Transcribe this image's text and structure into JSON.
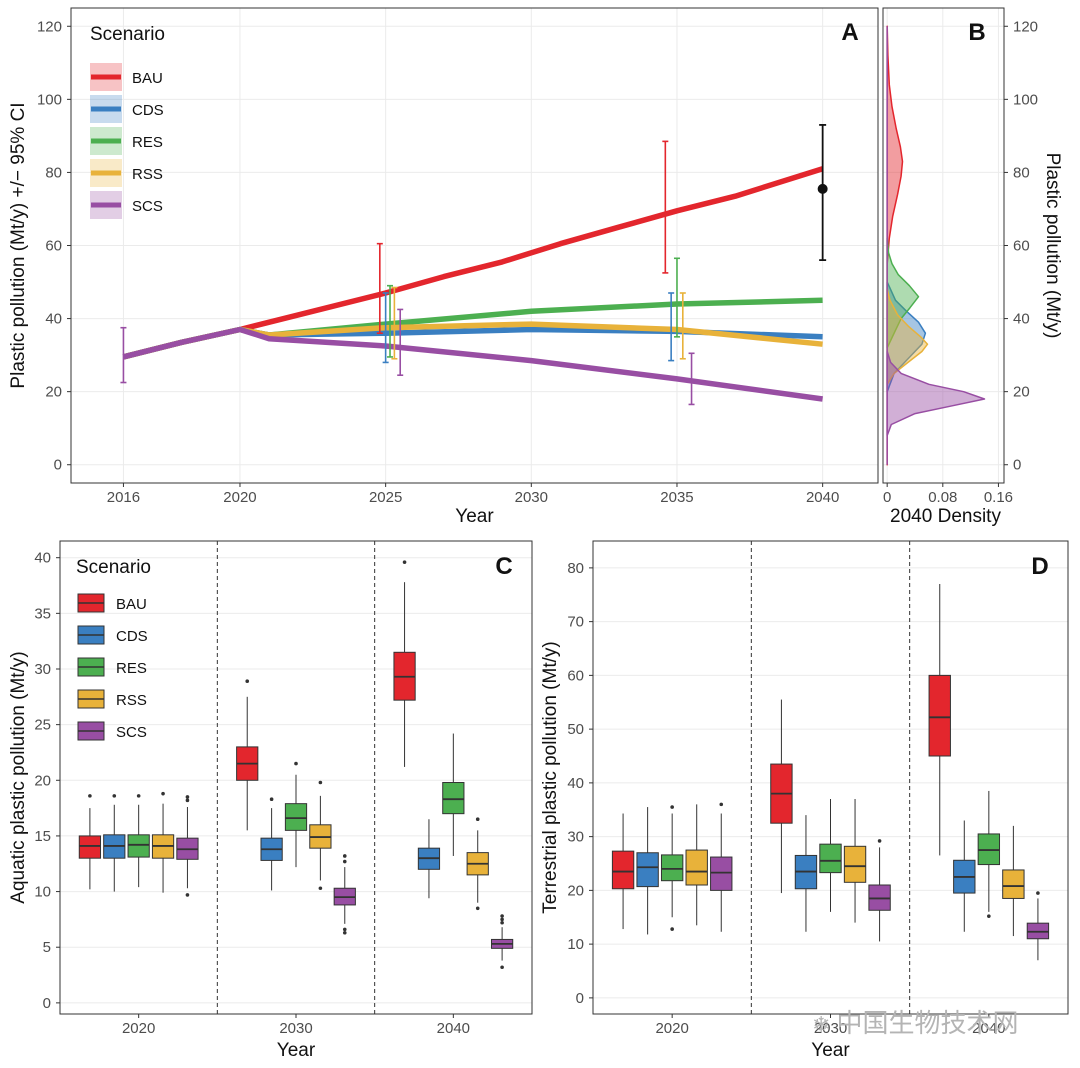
{
  "colors": {
    "BAU": "#e3262d",
    "CDS": "#3a7fc1",
    "RES": "#4caf50",
    "RSS": "#e8b23a",
    "SCS": "#984ea3",
    "observed": "#111111"
  },
  "legend": {
    "title": "Scenario",
    "entries": [
      "BAU",
      "CDS",
      "RES",
      "RSS",
      "SCS"
    ]
  },
  "watermark": "中国生物技术网",
  "chart_data": [
    {
      "panel": "A",
      "type": "line",
      "xlabel": "Year",
      "ylabel": "Plastic pollution (Mt/y) +/− 95% CI",
      "xlim": [
        2014.2,
        2041.9
      ],
      "ylim": [
        -5,
        125
      ],
      "xticks": [
        2016,
        2020,
        2025,
        2030,
        2035,
        2040
      ],
      "yticks": [
        0,
        20,
        40,
        60,
        80,
        100,
        120
      ],
      "series": [
        {
          "name": "BAU",
          "x": [
            2016,
            2018,
            2020,
            2022,
            2025,
            2027,
            2029,
            2031,
            2033,
            2035,
            2037,
            2040
          ],
          "y": [
            29.5,
            33.5,
            37,
            41,
            47,
            51.5,
            55.5,
            60.5,
            65,
            69.5,
            73.5,
            81
          ]
        },
        {
          "name": "CDS",
          "x": [
            2016,
            2018,
            2020,
            2021,
            2025,
            2030,
            2035,
            2040
          ],
          "y": [
            29.5,
            33.5,
            37,
            35.5,
            36,
            37,
            36.5,
            35
          ]
        },
        {
          "name": "RES",
          "x": [
            2016,
            2018,
            2020,
            2021,
            2025,
            2030,
            2035,
            2040
          ],
          "y": [
            29.5,
            33.5,
            37,
            35.5,
            38.5,
            42,
            44,
            45
          ]
        },
        {
          "name": "RSS",
          "x": [
            2016,
            2018,
            2020,
            2021,
            2025,
            2030,
            2035,
            2040
          ],
          "y": [
            29.5,
            33.5,
            37,
            35.5,
            37.5,
            38.5,
            37,
            33
          ]
        },
        {
          "name": "SCS",
          "x": [
            2016,
            2018,
            2020,
            2021,
            2025,
            2030,
            2035,
            2040
          ],
          "y": [
            29.5,
            33.5,
            37,
            34.5,
            32.5,
            28.5,
            23.5,
            18
          ]
        }
      ],
      "error_bars": [
        {
          "scenario": "SCS",
          "x": 2016,
          "low": 22.5,
          "high": 37.5
        },
        {
          "scenario": "BAU",
          "x": 2024.8,
          "low": 36,
          "high": 60.5
        },
        {
          "scenario": "CDS",
          "x": 2025.0,
          "low": 28,
          "high": 47
        },
        {
          "scenario": "RES",
          "x": 2025.15,
          "low": 29.5,
          "high": 49
        },
        {
          "scenario": "RSS",
          "x": 2025.3,
          "low": 29,
          "high": 48.5
        },
        {
          "scenario": "SCS",
          "x": 2025.5,
          "low": 24.5,
          "high": 42.5
        },
        {
          "scenario": "BAU",
          "x": 2034.6,
          "low": 52.5,
          "high": 88.5
        },
        {
          "scenario": "CDS",
          "x": 2034.8,
          "low": 28.5,
          "high": 47
        },
        {
          "scenario": "RES",
          "x": 2035.0,
          "low": 35,
          "high": 56.5
        },
        {
          "scenario": "RSS",
          "x": 2035.2,
          "low": 29,
          "high": 47
        },
        {
          "scenario": "SCS",
          "x": 2035.5,
          "low": 16.5,
          "high": 30.5
        }
      ],
      "observed_point": {
        "x": 2040,
        "y": 75.5,
        "low": 56,
        "high": 93
      }
    },
    {
      "panel": "B",
      "type": "area",
      "xlabel": "2040 Density",
      "ylabel": "Plastic pollution (Mt/y)",
      "xlim": [
        -0.006,
        0.168
      ],
      "ylim": [
        -5,
        125
      ],
      "xticks": [
        0,
        0.08,
        0.16
      ],
      "xtick_labels": [
        "0",
        "0.08",
        "0.16"
      ],
      "yticks": [
        0,
        20,
        40,
        60,
        80,
        100,
        120
      ],
      "densities": [
        {
          "name": "BAU",
          "y": [
            0,
            55,
            62,
            68,
            74,
            79,
            83,
            87,
            92,
            98,
            104,
            112,
            120
          ],
          "density": [
            0,
            0,
            0.003,
            0.008,
            0.015,
            0.02,
            0.022,
            0.019,
            0.013,
            0.007,
            0.003,
            0.001,
            0
          ]
        },
        {
          "name": "CDS",
          "y": [
            20,
            25,
            30,
            33,
            36,
            39,
            42,
            45,
            50
          ],
          "density": [
            0,
            0.01,
            0.035,
            0.05,
            0.055,
            0.045,
            0.028,
            0.012,
            0
          ]
        },
        {
          "name": "RES",
          "y": [
            32,
            36,
            40,
            43,
            46,
            49,
            52,
            55,
            58,
            62
          ],
          "density": [
            0,
            0.01,
            0.02,
            0.033,
            0.045,
            0.032,
            0.016,
            0.007,
            0.002,
            0
          ]
        },
        {
          "name": "RSS",
          "y": [
            22,
            25,
            28,
            31,
            33,
            35,
            38,
            41,
            45,
            48
          ],
          "density": [
            0,
            0.01,
            0.03,
            0.05,
            0.058,
            0.048,
            0.03,
            0.015,
            0.004,
            0
          ]
        },
        {
          "name": "SCS",
          "y": [
            8,
            11,
            14,
            16,
            18,
            20,
            22,
            25,
            28,
            31
          ],
          "density": [
            0,
            0.006,
            0.04,
            0.09,
            0.14,
            0.11,
            0.06,
            0.02,
            0.005,
            0
          ]
        }
      ]
    },
    {
      "panel": "C",
      "type": "box",
      "xlabel": "Year",
      "ylabel": "Aquatic plastic pollution (Mt/y)",
      "ylim": [
        -1,
        41.5
      ],
      "yticks": [
        0,
        5,
        10,
        15,
        20,
        25,
        30,
        35,
        40
      ],
      "categories": [
        "2020",
        "2030",
        "2040"
      ],
      "boxes": [
        {
          "year": "2020",
          "scenario": "BAU",
          "q1": 13.0,
          "median": 14.1,
          "q3": 15.0,
          "wlow": 10.2,
          "whigh": 17.5,
          "outliers": [
            18.6
          ]
        },
        {
          "year": "2020",
          "scenario": "CDS",
          "q1": 13.0,
          "median": 14.1,
          "q3": 15.1,
          "wlow": 10.0,
          "whigh": 17.8,
          "outliers": [
            18.6
          ]
        },
        {
          "year": "2020",
          "scenario": "RES",
          "q1": 13.1,
          "median": 14.2,
          "q3": 15.1,
          "wlow": 10.4,
          "whigh": 17.8,
          "outliers": [
            18.6
          ]
        },
        {
          "year": "2020",
          "scenario": "RSS",
          "q1": 13.0,
          "median": 14.1,
          "q3": 15.1,
          "wlow": 9.9,
          "whigh": 17.9,
          "outliers": [
            18.8
          ]
        },
        {
          "year": "2020",
          "scenario": "SCS",
          "q1": 12.9,
          "median": 13.8,
          "q3": 14.8,
          "wlow": 10.3,
          "whigh": 17.6,
          "outliers": [
            18.2,
            18.5,
            9.7
          ]
        },
        {
          "year": "2030",
          "scenario": "BAU",
          "q1": 20.0,
          "median": 21.5,
          "q3": 23.0,
          "wlow": 15.5,
          "whigh": 27.5,
          "outliers": [
            28.9
          ]
        },
        {
          "year": "2030",
          "scenario": "CDS",
          "q1": 12.8,
          "median": 13.8,
          "q3": 14.8,
          "wlow": 10.1,
          "whigh": 17.5,
          "outliers": [
            18.3
          ]
        },
        {
          "year": "2030",
          "scenario": "RES",
          "q1": 15.5,
          "median": 16.6,
          "q3": 17.9,
          "wlow": 12.2,
          "whigh": 20.5,
          "outliers": [
            21.5
          ]
        },
        {
          "year": "2030",
          "scenario": "RSS",
          "q1": 13.9,
          "median": 14.9,
          "q3": 16.0,
          "wlow": 11.0,
          "whigh": 18.6,
          "outliers": [
            19.8,
            10.3
          ]
        },
        {
          "year": "2030",
          "scenario": "SCS",
          "q1": 8.8,
          "median": 9.5,
          "q3": 10.3,
          "wlow": 7.1,
          "whigh": 12.2,
          "outliers": [
            12.7,
            13.2,
            6.6,
            6.3
          ]
        },
        {
          "year": "2040",
          "scenario": "BAU",
          "q1": 27.2,
          "median": 29.3,
          "q3": 31.5,
          "wlow": 21.2,
          "whigh": 37.8,
          "outliers": [
            39.6
          ]
        },
        {
          "year": "2040",
          "scenario": "CDS",
          "q1": 12.0,
          "median": 13.0,
          "q3": 13.9,
          "wlow": 9.4,
          "whigh": 16.5,
          "outliers": []
        },
        {
          "year": "2040",
          "scenario": "RES",
          "q1": 17.0,
          "median": 18.3,
          "q3": 19.8,
          "wlow": 13.2,
          "whigh": 24.2,
          "outliers": []
        },
        {
          "year": "2040",
          "scenario": "RSS",
          "q1": 11.5,
          "median": 12.5,
          "q3": 13.5,
          "wlow": 9.0,
          "whigh": 15.5,
          "outliers": [
            16.5,
            8.5
          ]
        },
        {
          "year": "2040",
          "scenario": "SCS",
          "q1": 4.9,
          "median": 5.3,
          "q3": 5.7,
          "wlow": 3.8,
          "whigh": 6.8,
          "outliers": [
            7.2,
            7.5,
            7.8,
            3.2
          ]
        }
      ]
    },
    {
      "panel": "D",
      "type": "box",
      "xlabel": "Year",
      "ylabel": "Terrestrial plastic pollution (Mt/y)",
      "ylim": [
        -3,
        85
      ],
      "yticks": [
        0,
        10,
        20,
        30,
        40,
        50,
        60,
        70,
        80
      ],
      "categories": [
        "2020",
        "2030",
        "2040"
      ],
      "boxes": [
        {
          "year": "2020",
          "scenario": "BAU",
          "q1": 20.3,
          "median": 23.5,
          "q3": 27.3,
          "wlow": 12.8,
          "whigh": 34.3,
          "outliers": []
        },
        {
          "year": "2020",
          "scenario": "CDS",
          "q1": 20.7,
          "median": 24.3,
          "q3": 27.0,
          "wlow": 11.8,
          "whigh": 35.5,
          "outliers": []
        },
        {
          "year": "2020",
          "scenario": "RES",
          "q1": 21.8,
          "median": 24.0,
          "q3": 26.6,
          "wlow": 15.0,
          "whigh": 34.3,
          "outliers": [
            35.5,
            12.8
          ]
        },
        {
          "year": "2020",
          "scenario": "RSS",
          "q1": 21.0,
          "median": 23.5,
          "q3": 27.5,
          "wlow": 13.5,
          "whigh": 36.0,
          "outliers": []
        },
        {
          "year": "2020",
          "scenario": "SCS",
          "q1": 20.0,
          "median": 23.3,
          "q3": 26.2,
          "wlow": 12.3,
          "whigh": 34.3,
          "outliers": [
            36.0
          ]
        },
        {
          "year": "2030",
          "scenario": "BAU",
          "q1": 32.5,
          "median": 38.0,
          "q3": 43.5,
          "wlow": 19.5,
          "whigh": 55.5,
          "outliers": []
        },
        {
          "year": "2030",
          "scenario": "CDS",
          "q1": 20.3,
          "median": 23.5,
          "q3": 26.5,
          "wlow": 12.3,
          "whigh": 34.0,
          "outliers": []
        },
        {
          "year": "2030",
          "scenario": "RES",
          "q1": 23.3,
          "median": 25.5,
          "q3": 28.6,
          "wlow": 16.0,
          "whigh": 37.0,
          "outliers": []
        },
        {
          "year": "2030",
          "scenario": "RSS",
          "q1": 21.5,
          "median": 24.5,
          "q3": 28.2,
          "wlow": 14.0,
          "whigh": 37.0,
          "outliers": []
        },
        {
          "year": "2030",
          "scenario": "SCS",
          "q1": 16.3,
          "median": 18.5,
          "q3": 21.0,
          "wlow": 10.5,
          "whigh": 28.0,
          "outliers": [
            29.2
          ]
        },
        {
          "year": "2040",
          "scenario": "BAU",
          "q1": 45.0,
          "median": 52.2,
          "q3": 60.0,
          "wlow": 26.5,
          "whigh": 77.0,
          "outliers": []
        },
        {
          "year": "2040",
          "scenario": "CDS",
          "q1": 19.5,
          "median": 22.5,
          "q3": 25.6,
          "wlow": 12.3,
          "whigh": 33.0,
          "outliers": []
        },
        {
          "year": "2040",
          "scenario": "RES",
          "q1": 24.8,
          "median": 27.5,
          "q3": 30.5,
          "wlow": 16.0,
          "whigh": 38.5,
          "outliers": [
            15.2
          ]
        },
        {
          "year": "2040",
          "scenario": "RSS",
          "q1": 18.5,
          "median": 20.8,
          "q3": 23.8,
          "wlow": 11.5,
          "whigh": 32.0,
          "outliers": []
        },
        {
          "year": "2040",
          "scenario": "SCS",
          "q1": 11.0,
          "median": 12.3,
          "q3": 13.9,
          "wlow": 7.0,
          "whigh": 18.5,
          "outliers": [
            19.5
          ]
        }
      ]
    }
  ]
}
